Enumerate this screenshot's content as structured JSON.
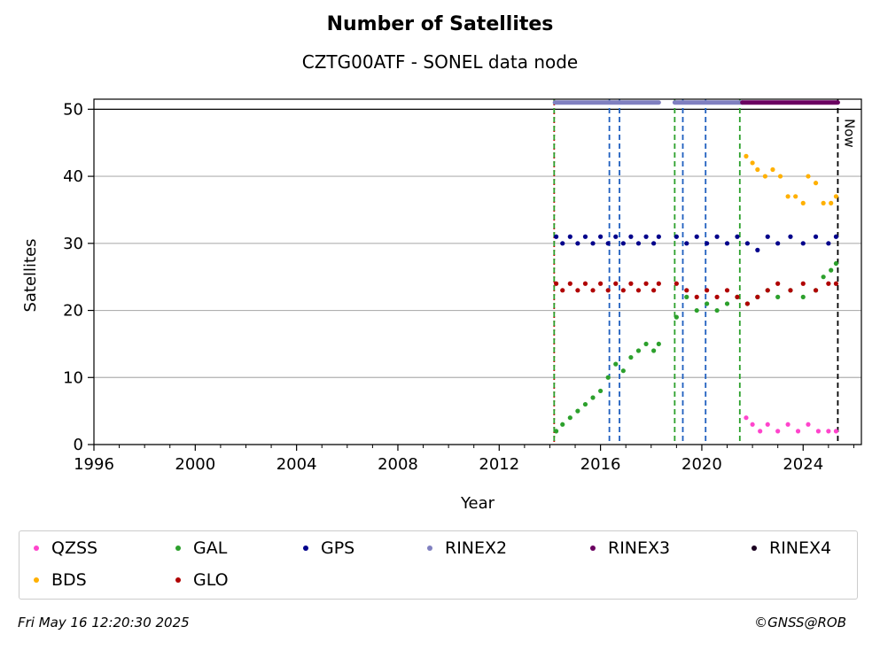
{
  "header": {
    "title": "Number of Satellites",
    "subtitle": "CZTG00ATF - SONEL data node"
  },
  "footer": {
    "timestamp": "Fri May 16 12:20:30 2025",
    "credit": "©GNSS@ROB"
  },
  "chart_data": {
    "type": "scatter",
    "xlabel": "Year",
    "ylabel": "Satellites",
    "xlim": [
      1996,
      2026.3
    ],
    "ylim": [
      0,
      51.5
    ],
    "xticks": [
      1996,
      2000,
      2004,
      2008,
      2012,
      2016,
      2020,
      2024
    ],
    "yticks": [
      0,
      10,
      20,
      30,
      40,
      50
    ],
    "grid": "horizontal",
    "legend_position": "bottom",
    "now_label": "Now",
    "now_x": 2025.37,
    "vlines": [
      {
        "x": 2014.17,
        "color": "#cc0000",
        "style": "dotted"
      },
      {
        "x": 2014.17,
        "color": "#2ca02c",
        "style": "dashed"
      },
      {
        "x": 2016.35,
        "color": "#1f5fbf",
        "style": "dashed"
      },
      {
        "x": 2016.75,
        "color": "#1f5fbf",
        "style": "dashed"
      },
      {
        "x": 2018.93,
        "color": "#2ca02c",
        "style": "dashed"
      },
      {
        "x": 2019.25,
        "color": "#1f5fbf",
        "style": "dashed"
      },
      {
        "x": 2020.15,
        "color": "#1f5fbf",
        "style": "dashed"
      },
      {
        "x": 2021.5,
        "color": "#2ca02c",
        "style": "dashed"
      },
      {
        "x": 2025.37,
        "color": "#000000",
        "style": "dashed"
      }
    ],
    "rinex_bars": [
      {
        "name": "RINEX2",
        "color": "#8080c0",
        "x0": 2014.2,
        "x1": 2018.3,
        "y": 51
      },
      {
        "name": "RINEX2",
        "color": "#8080c0",
        "x0": 2018.93,
        "x1": 2021.6,
        "y": 51
      },
      {
        "name": "RINEX3",
        "color": "#6a0060",
        "x0": 2021.6,
        "x1": 2025.37,
        "y": 51
      }
    ],
    "series": [
      {
        "name": "QZSS",
        "color": "#ff44cc",
        "x": [
          2021.75,
          2022.0,
          2022.3,
          2022.6,
          2023.0,
          2023.4,
          2023.8,
          2024.2,
          2024.6,
          2025.0,
          2025.3
        ],
        "y": [
          4,
          3,
          2,
          3,
          2,
          3,
          2,
          3,
          2,
          2,
          2
        ]
      },
      {
        "name": "GAL",
        "color": "#2ca02c",
        "x": [
          2014.25,
          2014.5,
          2014.8,
          2015.1,
          2015.4,
          2015.7,
          2016.0,
          2016.3,
          2016.6,
          2016.9,
          2017.2,
          2017.5,
          2017.8,
          2018.1,
          2018.3,
          2019.0,
          2019.4,
          2019.8,
          2020.2,
          2020.6,
          2021.0,
          2021.4,
          2021.8,
          2022.2,
          2022.6,
          2023.0,
          2023.5,
          2024.0,
          2024.5,
          2024.8,
          2025.1,
          2025.3
        ],
        "y": [
          2,
          3,
          4,
          5,
          6,
          7,
          8,
          10,
          12,
          11,
          13,
          14,
          15,
          14,
          15,
          19,
          22,
          20,
          21,
          20,
          21,
          22,
          21,
          22,
          23,
          22,
          23,
          22,
          23,
          25,
          26,
          27
        ]
      },
      {
        "name": "GPS",
        "color": "#00008b",
        "x": [
          2014.25,
          2014.5,
          2014.8,
          2015.1,
          2015.4,
          2015.7,
          2016.0,
          2016.3,
          2016.6,
          2016.9,
          2017.2,
          2017.5,
          2017.8,
          2018.1,
          2018.3,
          2019.0,
          2019.4,
          2019.8,
          2020.2,
          2020.6,
          2021.0,
          2021.4,
          2021.8,
          2022.2,
          2022.6,
          2023.0,
          2023.5,
          2024.0,
          2024.5,
          2025.0,
          2025.3
        ],
        "y": [
          31,
          30,
          31,
          30,
          31,
          30,
          31,
          30,
          31,
          30,
          31,
          30,
          31,
          30,
          31,
          31,
          30,
          31,
          30,
          31,
          30,
          31,
          30,
          29,
          31,
          30,
          31,
          30,
          31,
          30,
          31
        ]
      },
      {
        "name": "RINEX2",
        "color": "#8080c0",
        "x": [],
        "y": []
      },
      {
        "name": "RINEX3",
        "color": "#6a0060",
        "x": [],
        "y": []
      },
      {
        "name": "RINEX4",
        "color": "#1a0020",
        "x": [],
        "y": []
      },
      {
        "name": "BDS",
        "color": "#ffb000",
        "x": [
          2021.75,
          2022.0,
          2022.2,
          2022.5,
          2022.8,
          2023.1,
          2023.4,
          2023.7,
          2024.0,
          2024.2,
          2024.5,
          2024.8,
          2025.1,
          2025.3
        ],
        "y": [
          43,
          42,
          41,
          40,
          41,
          40,
          37,
          37,
          36,
          40,
          39,
          36,
          36,
          37
        ]
      },
      {
        "name": "GLO",
        "color": "#b00000",
        "x": [
          2014.25,
          2014.5,
          2014.8,
          2015.1,
          2015.4,
          2015.7,
          2016.0,
          2016.3,
          2016.6,
          2016.9,
          2017.2,
          2017.5,
          2017.8,
          2018.1,
          2018.3,
          2019.0,
          2019.4,
          2019.8,
          2020.2,
          2020.6,
          2021.0,
          2021.4,
          2021.8,
          2022.2,
          2022.6,
          2023.0,
          2023.5,
          2024.0,
          2024.5,
          2025.0,
          2025.3
        ],
        "y": [
          24,
          23,
          24,
          23,
          24,
          23,
          24,
          23,
          24,
          23,
          24,
          23,
          24,
          23,
          24,
          24,
          23,
          22,
          23,
          22,
          23,
          22,
          21,
          22,
          23,
          24,
          23,
          24,
          23,
          24,
          24
        ]
      }
    ]
  },
  "legend": {
    "items": [
      {
        "label": "QZSS",
        "color": "#ff44cc"
      },
      {
        "label": "GAL",
        "color": "#2ca02c"
      },
      {
        "label": "GPS",
        "color": "#00008b"
      },
      {
        "label": "RINEX2",
        "color": "#8080c0"
      },
      {
        "label": "RINEX3",
        "color": "#6a0060"
      },
      {
        "label": "RINEX4",
        "color": "#1a0020"
      },
      {
        "label": "BDS",
        "color": "#ffb000"
      },
      {
        "label": "GLO",
        "color": "#b00000"
      }
    ]
  }
}
